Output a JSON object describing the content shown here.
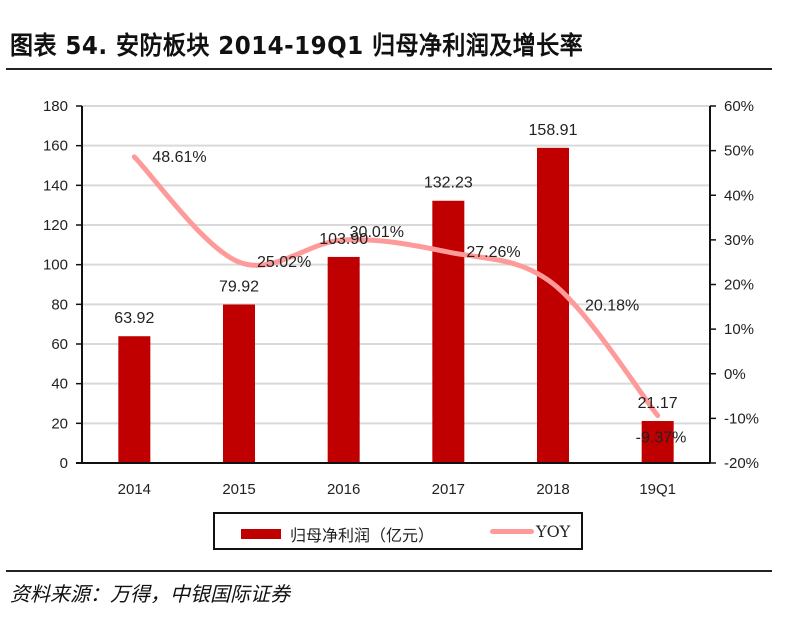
{
  "header": {
    "title": "图表 54. 安防板块 2014-19Q1 归母净利润及增长率"
  },
  "footer": {
    "source": "资料来源：万得，中银国际证券"
  },
  "colors": {
    "bar": "#c00000",
    "line": "#ff9a9a",
    "grid": "#d9d9d9",
    "axis": "#111111"
  },
  "chart_data": {
    "type": "bar+line",
    "title": "安防板块 2014-19Q1 归母净利润及增长率",
    "categories": [
      "2014",
      "2015",
      "2016",
      "2017",
      "2018",
      "19Q1"
    ],
    "series": [
      {
        "name": "归母净利润（亿元）",
        "type": "bar",
        "axis": "left",
        "values": [
          63.92,
          79.92,
          103.9,
          132.23,
          158.91,
          21.17
        ],
        "labels": [
          "63.92",
          "79.92",
          "103.90",
          "132.23",
          "158.91",
          "21.17"
        ]
      },
      {
        "name": "YOY",
        "type": "line",
        "smooth": true,
        "axis": "right",
        "values": [
          48.61,
          25.02,
          30.01,
          27.26,
          20.18,
          -9.37
        ],
        "labels": [
          "48.61%",
          "25.02%",
          "30.01%",
          "27.26%",
          "20.18%",
          "-9.37%"
        ]
      }
    ],
    "y_left": {
      "lim": [
        0,
        180
      ],
      "ticks": [
        "0",
        "20",
        "40",
        "60",
        "80",
        "100",
        "120",
        "140",
        "160",
        "180"
      ]
    },
    "y_right": {
      "lim": [
        -20,
        60
      ],
      "ticks": [
        "-20%",
        "-10%",
        "0%",
        "10%",
        "20%",
        "30%",
        "40%",
        "50%",
        "60%"
      ]
    },
    "grid": true,
    "legend": {
      "position": "bottom",
      "entries": [
        "归母净利润（亿元）",
        "YOY"
      ]
    }
  }
}
